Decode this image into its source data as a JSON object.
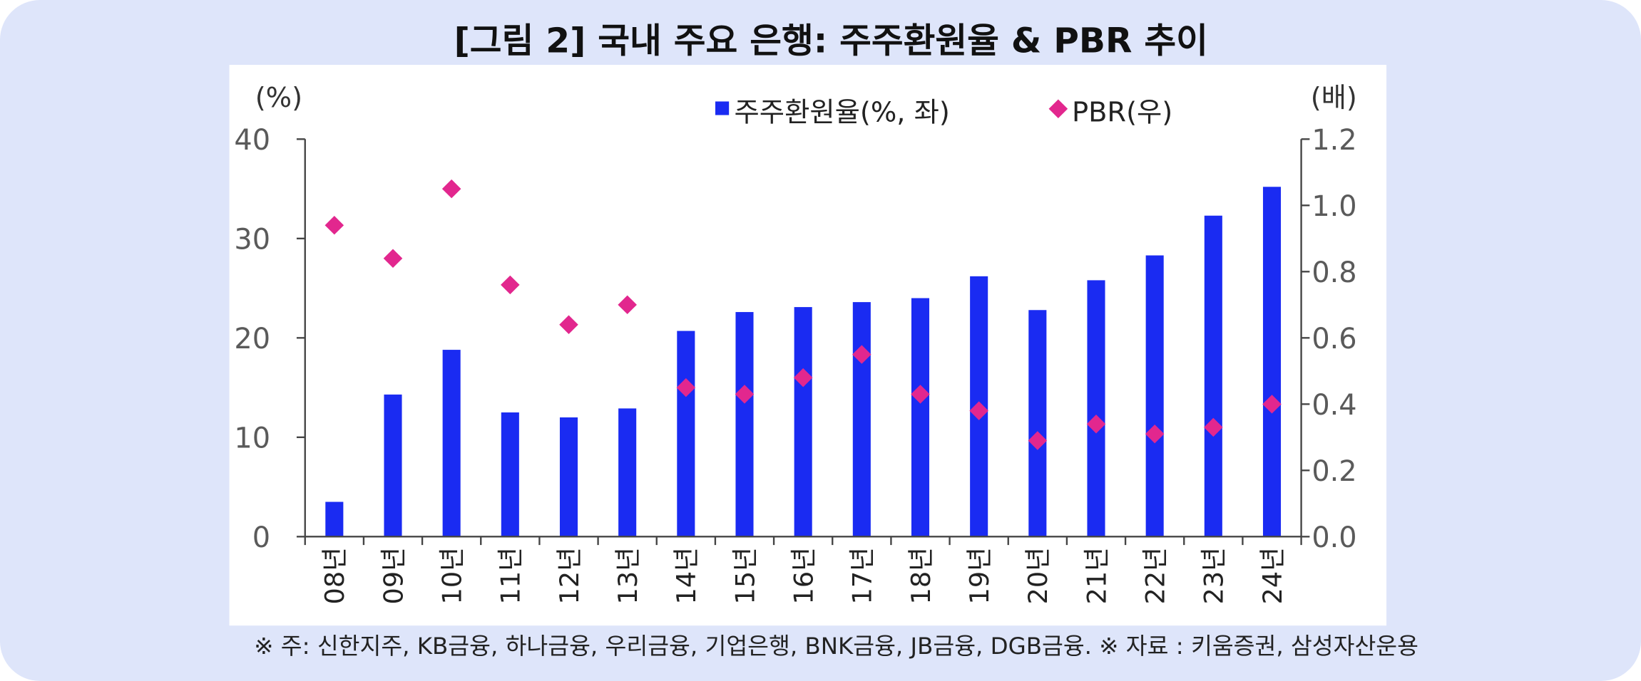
{
  "title": "[그림 2] 국내 주요 은행: 주주환원율 & PBR 추이",
  "footnote": "※ 주: 신한지주, KB금융, 하나금융, 우리금융, 기업은행, BNK금융, JB금융, DGB금융. ※ 자료 : 키움증권, 삼성자산운용",
  "colors": {
    "background": "#dee5fa",
    "plot_area": "#ffffff",
    "bar": "#1a2bf2",
    "pbr_marker": "#e2278e"
  },
  "chart_data": {
    "type": "bar",
    "categories": [
      "08년",
      "09년",
      "10년",
      "11년",
      "12년",
      "13년",
      "14년",
      "15년",
      "16년",
      "17년",
      "18년",
      "19년",
      "20년",
      "21년",
      "22년",
      "23년",
      "24년"
    ],
    "series": [
      {
        "name": "주주환원율(%, 좌)",
        "type": "bar",
        "axis": "left",
        "values": [
          3.5,
          14.3,
          18.8,
          12.5,
          12.0,
          12.9,
          20.7,
          22.6,
          23.1,
          23.6,
          24.0,
          26.2,
          22.8,
          25.8,
          28.3,
          32.3,
          35.2
        ]
      },
      {
        "name": "PBR(우)",
        "type": "scatter",
        "axis": "right",
        "marker": "diamond",
        "values": [
          0.94,
          0.84,
          1.05,
          0.76,
          0.64,
          0.7,
          0.45,
          0.43,
          0.48,
          0.55,
          0.43,
          0.38,
          0.29,
          0.34,
          0.31,
          0.33,
          0.4
        ]
      }
    ],
    "y_left": {
      "label": "(%)",
      "range": [
        0,
        40
      ],
      "ticks": [
        "0",
        "10",
        "20",
        "30",
        "40"
      ]
    },
    "y_right": {
      "label": "(배)",
      "range": [
        0,
        1.2
      ],
      "ticks": [
        "0.0",
        "0.2",
        "0.4",
        "0.6",
        "0.8",
        "1.0",
        "1.2"
      ]
    },
    "legend": "top",
    "grid": false
  }
}
